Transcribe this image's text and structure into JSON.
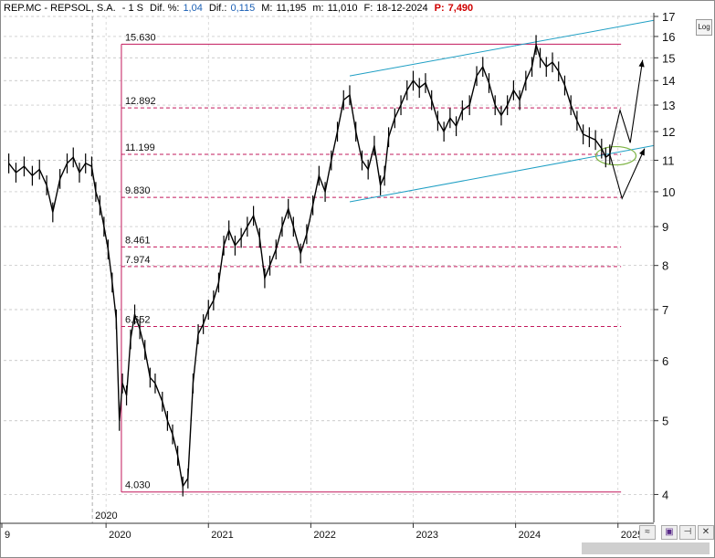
{
  "header": {
    "ticker": "REP.MC - REPSOL, S.A.",
    "period": "- 1 S",
    "dif_pct_label": "Dif. %:",
    "dif_pct": "1,04",
    "dif_label": "Dif.:",
    "dif": "0,115",
    "max_label": "M:",
    "max": "11,195",
    "min_label": "m:",
    "min": "11,010",
    "date_label": "F:",
    "date": "18-12-2024",
    "p_label": "P:",
    "p": "7,490"
  },
  "log_button": "Log",
  "toolbar": {
    "icon1": "chart-options-icon",
    "icon2": "save-icon",
    "icon3": "pin-icon",
    "icon4": "close-icon"
  },
  "chart_data": {
    "type": "line",
    "scale": "log",
    "ylim": [
      3.8,
      17
    ],
    "xlim": [
      2019.0,
      2025.35
    ],
    "y_ticks": [
      "4",
      "5",
      "6",
      "7",
      "8",
      "9",
      "10",
      "11",
      "12",
      "13",
      "14",
      "15",
      "16",
      "17"
    ],
    "x_ticks": [
      "2019",
      "2020",
      "2021",
      "2022",
      "2023",
      "2024",
      "2025"
    ],
    "x_tick_labels": [
      "9",
      "2020",
      "2021",
      "2022",
      "2023",
      "2024",
      "2025"
    ],
    "x_marker": "2020",
    "levels": [
      {
        "label": "15.630",
        "value": 15.63
      },
      {
        "label": "12.892",
        "value": 12.892
      },
      {
        "label": "11.199",
        "value": 11.199
      },
      {
        "label": "9.830",
        "value": 9.83
      },
      {
        "label": "8.461",
        "value": 8.461
      },
      {
        "label": "7.974",
        "value": 7.974
      },
      {
        "label": "6.652",
        "value": 6.652
      },
      {
        "label": "4.030",
        "value": 4.03
      }
    ],
    "series": [
      {
        "values": [
          [
            2019.05,
            10.9
          ],
          [
            2019.12,
            10.6
          ],
          [
            2019.2,
            10.8
          ],
          [
            2019.28,
            10.5
          ],
          [
            2019.35,
            10.7
          ],
          [
            2019.42,
            10.2
          ],
          [
            2019.48,
            9.4
          ],
          [
            2019.55,
            10.4
          ],
          [
            2019.62,
            10.9
          ],
          [
            2019.68,
            11.1
          ],
          [
            2019.74,
            10.6
          ],
          [
            2019.8,
            10.9
          ],
          [
            2019.86,
            10.8
          ],
          [
            2019.9,
            10.0
          ],
          [
            2019.94,
            9.6
          ],
          [
            2019.98,
            9.0
          ],
          [
            2020.02,
            8.4
          ],
          [
            2020.06,
            7.6
          ],
          [
            2020.1,
            6.8
          ],
          [
            2020.13,
            5.0
          ],
          [
            2020.16,
            5.6
          ],
          [
            2020.2,
            5.4
          ],
          [
            2020.24,
            6.4
          ],
          [
            2020.28,
            6.9
          ],
          [
            2020.33,
            6.6
          ],
          [
            2020.38,
            6.2
          ],
          [
            2020.43,
            5.7
          ],
          [
            2020.48,
            5.6
          ],
          [
            2020.55,
            5.3
          ],
          [
            2020.6,
            5.0
          ],
          [
            2020.65,
            4.8
          ],
          [
            2020.7,
            4.5
          ],
          [
            2020.75,
            4.1
          ],
          [
            2020.8,
            4.2
          ],
          [
            2020.85,
            5.6
          ],
          [
            2020.9,
            6.5
          ],
          [
            2020.95,
            6.7
          ],
          [
            2021.0,
            7.0
          ],
          [
            2021.05,
            7.2
          ],
          [
            2021.1,
            7.6
          ],
          [
            2021.15,
            8.5
          ],
          [
            2021.2,
            8.9
          ],
          [
            2021.26,
            8.5
          ],
          [
            2021.32,
            8.7
          ],
          [
            2021.38,
            9.0
          ],
          [
            2021.44,
            9.3
          ],
          [
            2021.5,
            8.7
          ],
          [
            2021.55,
            7.7
          ],
          [
            2021.6,
            8.0
          ],
          [
            2021.66,
            8.4
          ],
          [
            2021.72,
            9.0
          ],
          [
            2021.78,
            9.5
          ],
          [
            2021.83,
            9.0
          ],
          [
            2021.9,
            8.3
          ],
          [
            2021.96,
            8.8
          ],
          [
            2022.02,
            9.6
          ],
          [
            2022.08,
            10.5
          ],
          [
            2022.14,
            10.0
          ],
          [
            2022.2,
            11.0
          ],
          [
            2022.26,
            12.0
          ],
          [
            2022.32,
            13.2
          ],
          [
            2022.38,
            13.4
          ],
          [
            2022.44,
            12.0
          ],
          [
            2022.5,
            11.0
          ],
          [
            2022.56,
            10.7
          ],
          [
            2022.62,
            11.5
          ],
          [
            2022.68,
            10.2
          ],
          [
            2022.72,
            10.5
          ],
          [
            2022.76,
            11.8
          ],
          [
            2022.82,
            12.5
          ],
          [
            2022.88,
            13.0
          ],
          [
            2022.94,
            13.6
          ],
          [
            2023.0,
            14.0
          ],
          [
            2023.06,
            13.7
          ],
          [
            2023.12,
            13.9
          ],
          [
            2023.18,
            13.2
          ],
          [
            2023.24,
            12.4
          ],
          [
            2023.3,
            12.0
          ],
          [
            2023.36,
            12.5
          ],
          [
            2023.42,
            12.2
          ],
          [
            2023.48,
            12.8
          ],
          [
            2023.55,
            13.0
          ],
          [
            2023.62,
            14.2
          ],
          [
            2023.68,
            14.6
          ],
          [
            2023.74,
            13.9
          ],
          [
            2023.8,
            13.0
          ],
          [
            2023.86,
            12.6
          ],
          [
            2023.92,
            13.0
          ],
          [
            2023.98,
            13.6
          ],
          [
            2024.04,
            13.2
          ],
          [
            2024.1,
            14.0
          ],
          [
            2024.16,
            14.6
          ],
          [
            2024.2,
            15.6
          ],
          [
            2024.24,
            15.0
          ],
          [
            2024.3,
            14.6
          ],
          [
            2024.36,
            14.8
          ],
          [
            2024.42,
            14.4
          ],
          [
            2024.48,
            13.8
          ],
          [
            2024.54,
            13.0
          ],
          [
            2024.6,
            12.4
          ],
          [
            2024.66,
            11.9
          ],
          [
            2024.72,
            11.8
          ],
          [
            2024.78,
            11.7
          ],
          [
            2024.84,
            11.4
          ],
          [
            2024.88,
            11.1
          ],
          [
            2024.92,
            11.2
          ]
        ]
      }
    ],
    "projection": [
      [
        2024.92,
        11.2
      ],
      [
        2025.02,
        12.8
      ],
      [
        2025.12,
        11.6
      ],
      [
        2025.24,
        14.9
      ]
    ],
    "projection_alt": [
      [
        2024.92,
        11.2
      ],
      [
        2025.04,
        9.8
      ],
      [
        2025.26,
        11.4
      ]
    ]
  }
}
